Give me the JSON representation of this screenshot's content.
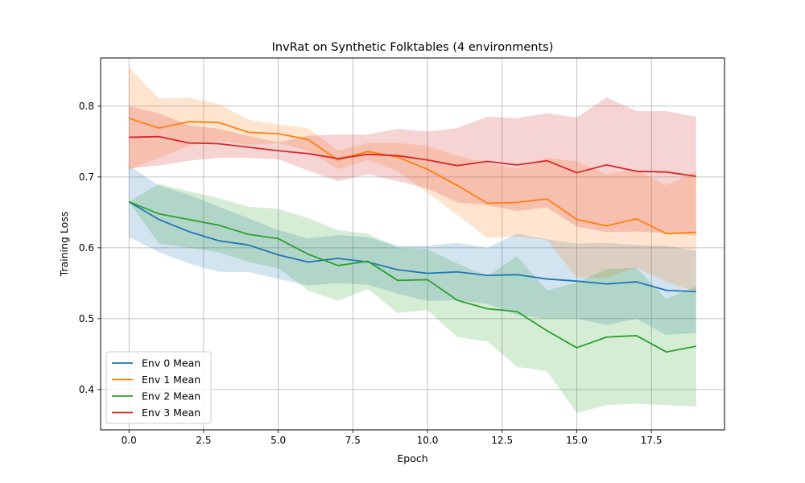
{
  "chart_data": {
    "type": "line",
    "title": "InvRat on Synthetic Folktables (4 environments)",
    "xlabel": "Epoch",
    "ylabel": "Training Loss",
    "xlim": [
      -0.95,
      19.95
    ],
    "ylim": [
      0.343,
      0.868
    ],
    "xticks": [
      0.0,
      2.5,
      5.0,
      7.5,
      10.0,
      12.5,
      15.0,
      17.5
    ],
    "xtick_labels": [
      "0.0",
      "2.5",
      "5.0",
      "7.5",
      "10.0",
      "12.5",
      "15.0",
      "17.5"
    ],
    "yticks": [
      0.4,
      0.5,
      0.6,
      0.7,
      0.8
    ],
    "ytick_labels": [
      "0.4",
      "0.5",
      "0.6",
      "0.7",
      "0.8"
    ],
    "grid": true,
    "legend_position": "lower-left",
    "x": [
      0,
      1,
      2,
      3,
      4,
      5,
      6,
      7,
      8,
      9,
      10,
      11,
      12,
      13,
      14,
      15,
      16,
      17,
      18,
      19
    ],
    "series": [
      {
        "name": "Env 0 Mean",
        "color": "#1f77b4",
        "values": [
          0.665,
          0.64,
          0.623,
          0.61,
          0.604,
          0.59,
          0.58,
          0.585,
          0.58,
          0.569,
          0.564,
          0.566,
          0.561,
          0.562,
          0.556,
          0.553,
          0.549,
          0.552,
          0.54,
          0.538
        ],
        "upper": [
          0.716,
          0.688,
          0.675,
          0.658,
          0.642,
          0.625,
          0.613,
          0.618,
          0.615,
          0.603,
          0.603,
          0.607,
          0.6,
          0.62,
          0.612,
          0.606,
          0.607,
          0.604,
          0.603,
          0.596
        ],
        "lower": [
          0.615,
          0.594,
          0.578,
          0.566,
          0.566,
          0.556,
          0.547,
          0.55,
          0.548,
          0.535,
          0.525,
          0.526,
          0.521,
          0.505,
          0.5,
          0.5,
          0.491,
          0.5,
          0.477,
          0.48
        ]
      },
      {
        "name": "Env 1 Mean",
        "color": "#ff7f0e",
        "values": [
          0.783,
          0.769,
          0.778,
          0.777,
          0.763,
          0.761,
          0.753,
          0.724,
          0.736,
          0.728,
          0.711,
          0.688,
          0.663,
          0.664,
          0.669,
          0.64,
          0.631,
          0.641,
          0.62,
          0.622
        ],
        "upper": [
          0.855,
          0.811,
          0.812,
          0.803,
          0.781,
          0.774,
          0.769,
          0.737,
          0.748,
          0.748,
          0.744,
          0.73,
          0.72,
          0.712,
          0.727,
          0.722,
          0.704,
          0.71,
          0.688,
          0.708
        ],
        "lower": [
          0.71,
          0.727,
          0.744,
          0.751,
          0.745,
          0.748,
          0.737,
          0.711,
          0.724,
          0.708,
          0.678,
          0.646,
          0.614,
          0.616,
          0.611,
          0.558,
          0.558,
          0.572,
          0.552,
          0.538
        ]
      },
      {
        "name": "Env 2 Mean",
        "color": "#2ca02c",
        "values": [
          0.665,
          0.648,
          0.64,
          0.632,
          0.619,
          0.613,
          0.591,
          0.575,
          0.581,
          0.554,
          0.555,
          0.526,
          0.514,
          0.51,
          0.483,
          0.459,
          0.474,
          0.476,
          0.453,
          0.461
        ],
        "upper": [
          0.665,
          0.69,
          0.68,
          0.67,
          0.658,
          0.655,
          0.642,
          0.625,
          0.62,
          0.6,
          0.598,
          0.578,
          0.56,
          0.588,
          0.54,
          0.551,
          0.57,
          0.572,
          0.528,
          0.546
        ],
        "lower": [
          0.665,
          0.606,
          0.6,
          0.594,
          0.58,
          0.571,
          0.54,
          0.525,
          0.542,
          0.508,
          0.512,
          0.474,
          0.468,
          0.432,
          0.426,
          0.367,
          0.378,
          0.38,
          0.378,
          0.376
        ]
      },
      {
        "name": "Env 3 Mean",
        "color": "#d62728",
        "values": [
          0.756,
          0.757,
          0.748,
          0.747,
          0.742,
          0.737,
          0.733,
          0.726,
          0.732,
          0.73,
          0.724,
          0.716,
          0.722,
          0.717,
          0.723,
          0.706,
          0.717,
          0.708,
          0.707,
          0.701
        ],
        "upper": [
          0.8,
          0.79,
          0.773,
          0.768,
          0.758,
          0.749,
          0.758,
          0.76,
          0.76,
          0.768,
          0.764,
          0.769,
          0.785,
          0.783,
          0.79,
          0.784,
          0.812,
          0.793,
          0.793,
          0.785
        ],
        "lower": [
          0.712,
          0.716,
          0.723,
          0.727,
          0.727,
          0.725,
          0.709,
          0.694,
          0.704,
          0.694,
          0.684,
          0.664,
          0.66,
          0.652,
          0.657,
          0.63,
          0.622,
          0.623,
          0.621,
          0.617
        ]
      }
    ]
  }
}
